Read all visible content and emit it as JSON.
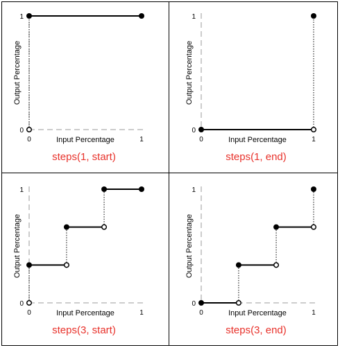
{
  "colors": {
    "title": "#e8312a",
    "border": "#000000",
    "axis": "#999999",
    "line": "#000000"
  },
  "chart_data": [
    {
      "type": "line",
      "title": "steps(1, start)",
      "xlabel": "Input Percentage",
      "ylabel": "Output Percentage",
      "xticks": [
        "0",
        "1"
      ],
      "yticks": [
        "0",
        "1"
      ],
      "xlim": [
        0,
        1
      ],
      "ylim": [
        0,
        1
      ],
      "segments": [
        [
          [
            0,
            1
          ],
          [
            1,
            1
          ]
        ]
      ],
      "filled_points": [
        [
          0,
          1
        ],
        [
          1,
          1
        ]
      ],
      "open_points": [
        [
          0,
          0
        ]
      ],
      "jumps": [
        [
          0,
          0,
          1
        ]
      ]
    },
    {
      "type": "line",
      "title": "steps(1, end)",
      "xlabel": "Input Percentage",
      "ylabel": "Output Percentage",
      "xticks": [
        "0",
        "1"
      ],
      "yticks": [
        "0",
        "1"
      ],
      "xlim": [
        0,
        1
      ],
      "ylim": [
        0,
        1
      ],
      "segments": [
        [
          [
            0,
            0
          ],
          [
            1,
            0
          ]
        ]
      ],
      "filled_points": [
        [
          0,
          0
        ],
        [
          1,
          1
        ]
      ],
      "open_points": [
        [
          1,
          0
        ]
      ],
      "jumps": [
        [
          1,
          0,
          1
        ]
      ]
    },
    {
      "type": "line",
      "title": "steps(3, start)",
      "xlabel": "Input Percentage",
      "ylabel": "Output Percentage",
      "xticks": [
        "0",
        "1"
      ],
      "yticks": [
        "0",
        "1"
      ],
      "xlim": [
        0,
        1
      ],
      "ylim": [
        0,
        1
      ],
      "segments": [
        [
          [
            0,
            0.333
          ],
          [
            0.333,
            0.333
          ]
        ],
        [
          [
            0.333,
            0.667
          ],
          [
            0.667,
            0.667
          ]
        ],
        [
          [
            0.667,
            1
          ],
          [
            1,
            1
          ]
        ]
      ],
      "filled_points": [
        [
          0,
          0.333
        ],
        [
          0.333,
          0.667
        ],
        [
          0.667,
          1
        ],
        [
          1,
          1
        ]
      ],
      "open_points": [
        [
          0,
          0
        ],
        [
          0.333,
          0.333
        ],
        [
          0.667,
          0.667
        ]
      ],
      "jumps": [
        [
          0,
          0,
          0.333
        ],
        [
          0.333,
          0.333,
          0.667
        ],
        [
          0.667,
          0.667,
          1
        ]
      ]
    },
    {
      "type": "line",
      "title": "steps(3, end)",
      "xlabel": "Input Percentage",
      "ylabel": "Output Percentage",
      "xticks": [
        "0",
        "1"
      ],
      "yticks": [
        "0",
        "1"
      ],
      "xlim": [
        0,
        1
      ],
      "ylim": [
        0,
        1
      ],
      "segments": [
        [
          [
            0,
            0
          ],
          [
            0.333,
            0
          ]
        ],
        [
          [
            0.333,
            0.333
          ],
          [
            0.667,
            0.333
          ]
        ],
        [
          [
            0.667,
            0.667
          ],
          [
            1,
            0.667
          ]
        ]
      ],
      "filled_points": [
        [
          0,
          0
        ],
        [
          0.333,
          0.333
        ],
        [
          0.667,
          0.667
        ],
        [
          1,
          1
        ]
      ],
      "open_points": [
        [
          0.333,
          0
        ],
        [
          0.667,
          0.333
        ],
        [
          1,
          0.667
        ]
      ],
      "jumps": [
        [
          0.333,
          0,
          0.333
        ],
        [
          0.667,
          0.333,
          0.667
        ],
        [
          1,
          0.667,
          1
        ]
      ]
    }
  ]
}
